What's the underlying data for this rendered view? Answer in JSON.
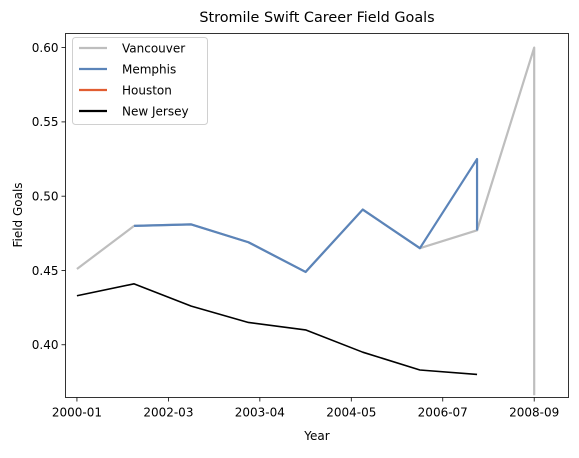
{
  "chart_data": {
    "type": "line",
    "title": "Stromile Swift Career Field Goals",
    "xlabel": "Year",
    "ylabel": "Field Goals",
    "x_ticks": [
      "2000-01",
      "2002-03",
      "2003-04",
      "2004-05",
      "2006-07",
      "2008-09"
    ],
    "y_ticks": [
      "0.40",
      "0.45",
      "0.50",
      "0.55",
      "0.60"
    ],
    "y_tick_values": [
      0.4,
      0.45,
      0.5,
      0.55,
      0.6
    ],
    "xlim": [
      -0.2,
      8.6
    ],
    "ylim": [
      0.3645,
      0.6095
    ],
    "grid": false,
    "legend_position": "upper-left",
    "series": [
      {
        "name": "Vancouver",
        "color": "#bebebe",
        "x": [
          0,
          1,
          2,
          3,
          4,
          5,
          6,
          7,
          8,
          8
        ],
        "y": [
          0.451,
          0.48,
          0.481,
          0.469,
          0.449,
          0.491,
          0.465,
          0.477,
          0.6,
          0.366
        ]
      },
      {
        "name": "Memphis",
        "color": "#5b84b9",
        "x": [
          1,
          2,
          3,
          4,
          5,
          6,
          7,
          7
        ],
        "y": [
          0.48,
          0.481,
          0.469,
          0.449,
          0.491,
          0.465,
          0.525,
          0.477
        ]
      },
      {
        "name": "Houston",
        "color": "#e15d31",
        "x": [],
        "y": []
      },
      {
        "name": "New Jersey",
        "color": "#000000",
        "x": [
          0,
          1,
          2,
          3,
          4,
          5,
          6,
          7
        ],
        "y": [
          0.433,
          0.441,
          0.426,
          0.415,
          0.41,
          0.395,
          0.383,
          0.38
        ]
      }
    ]
  }
}
